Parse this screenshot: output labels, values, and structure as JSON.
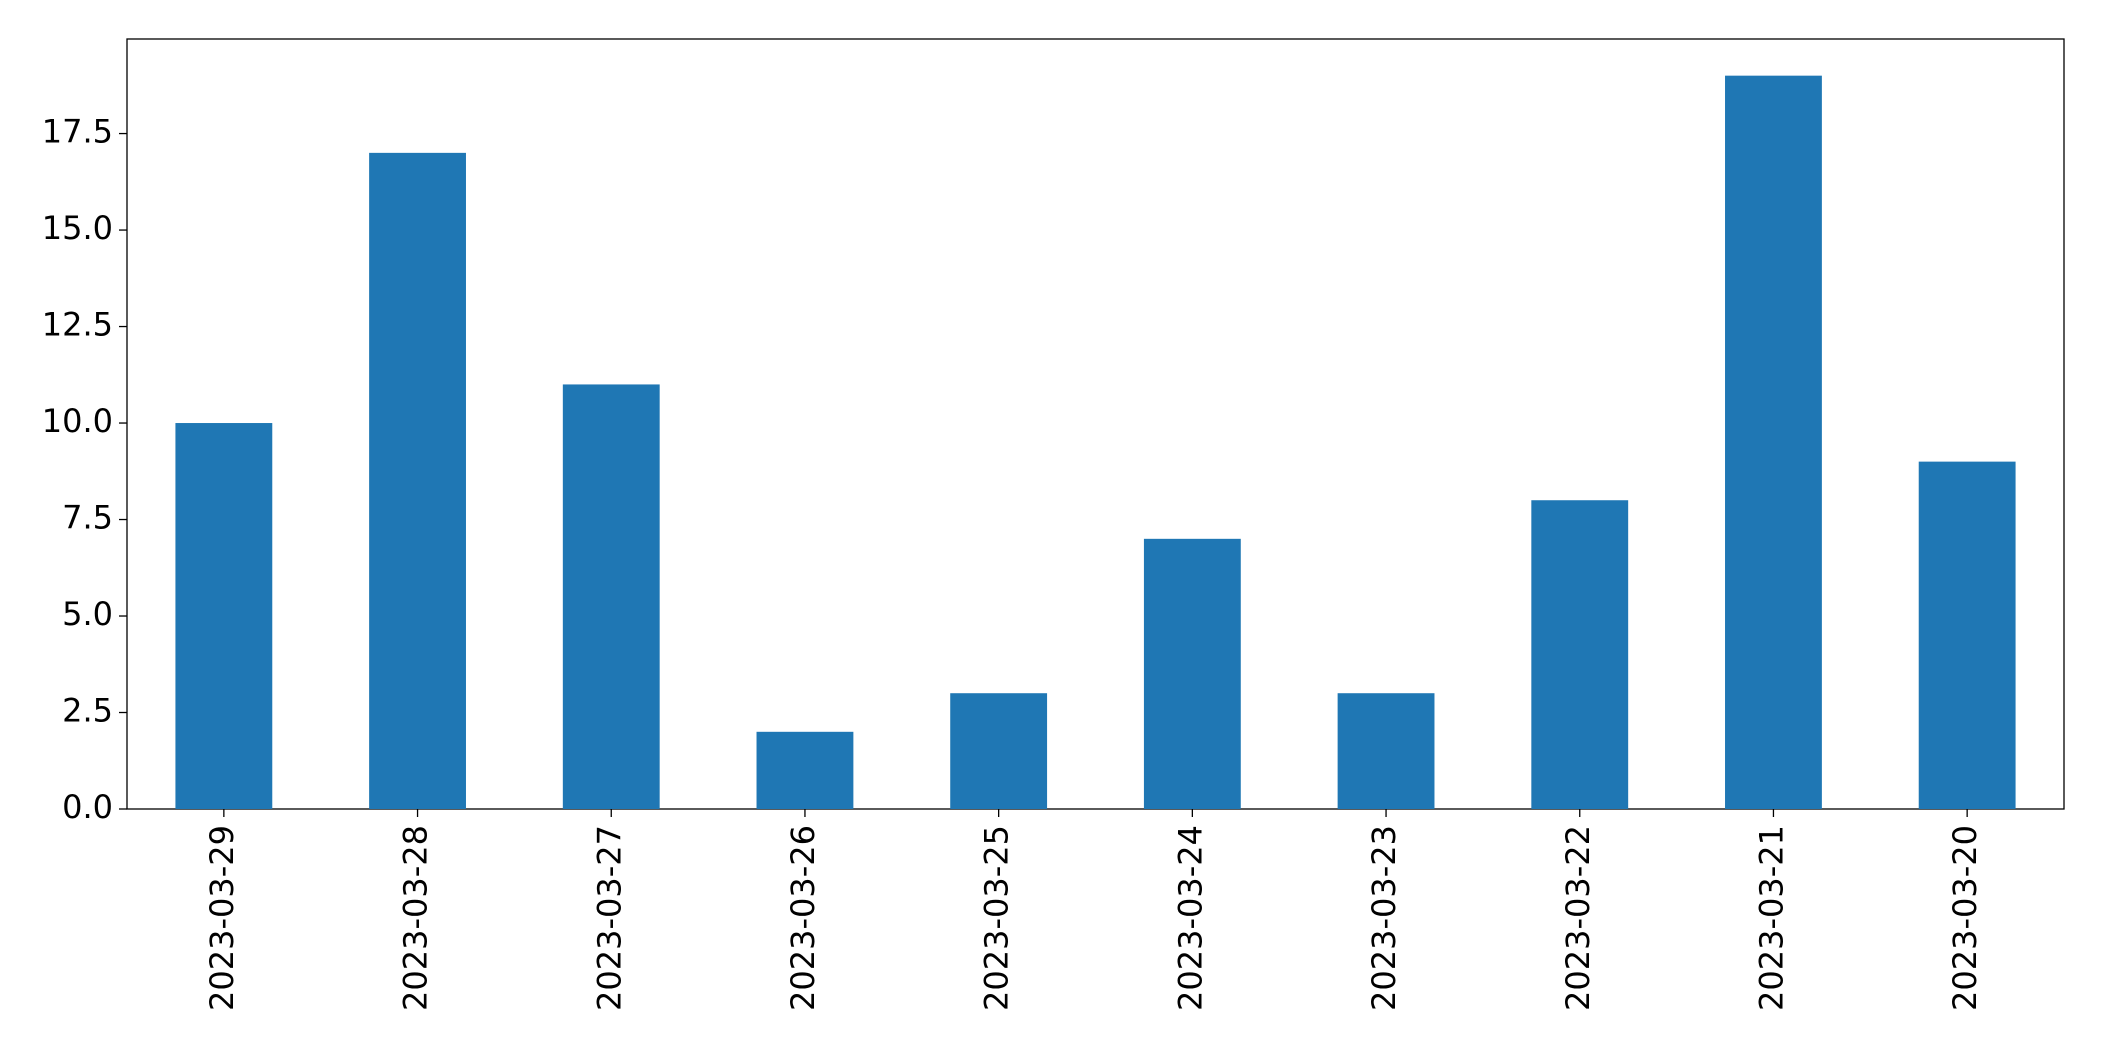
{
  "chart_data": {
    "type": "bar",
    "categories": [
      "2023-03-29",
      "2023-03-28",
      "2023-03-27",
      "2023-03-26",
      "2023-03-25",
      "2023-03-24",
      "2023-03-23",
      "2023-03-22",
      "2023-03-21",
      "2023-03-20"
    ],
    "values": [
      10,
      17,
      11,
      2,
      3,
      7,
      3,
      8,
      19,
      9
    ],
    "color": "#1f77b4",
    "ylim": [
      0,
      19.95
    ],
    "yticks": [
      {
        "value": 0,
        "label": "0.0"
      },
      2.5,
      {
        "value": 5,
        "label": "5.0"
      },
      7.5,
      {
        "value": 10,
        "label": "10.0"
      },
      12.5,
      {
        "value": 15,
        "label": "15.0"
      },
      17.5
    ],
    "grid": false
  }
}
